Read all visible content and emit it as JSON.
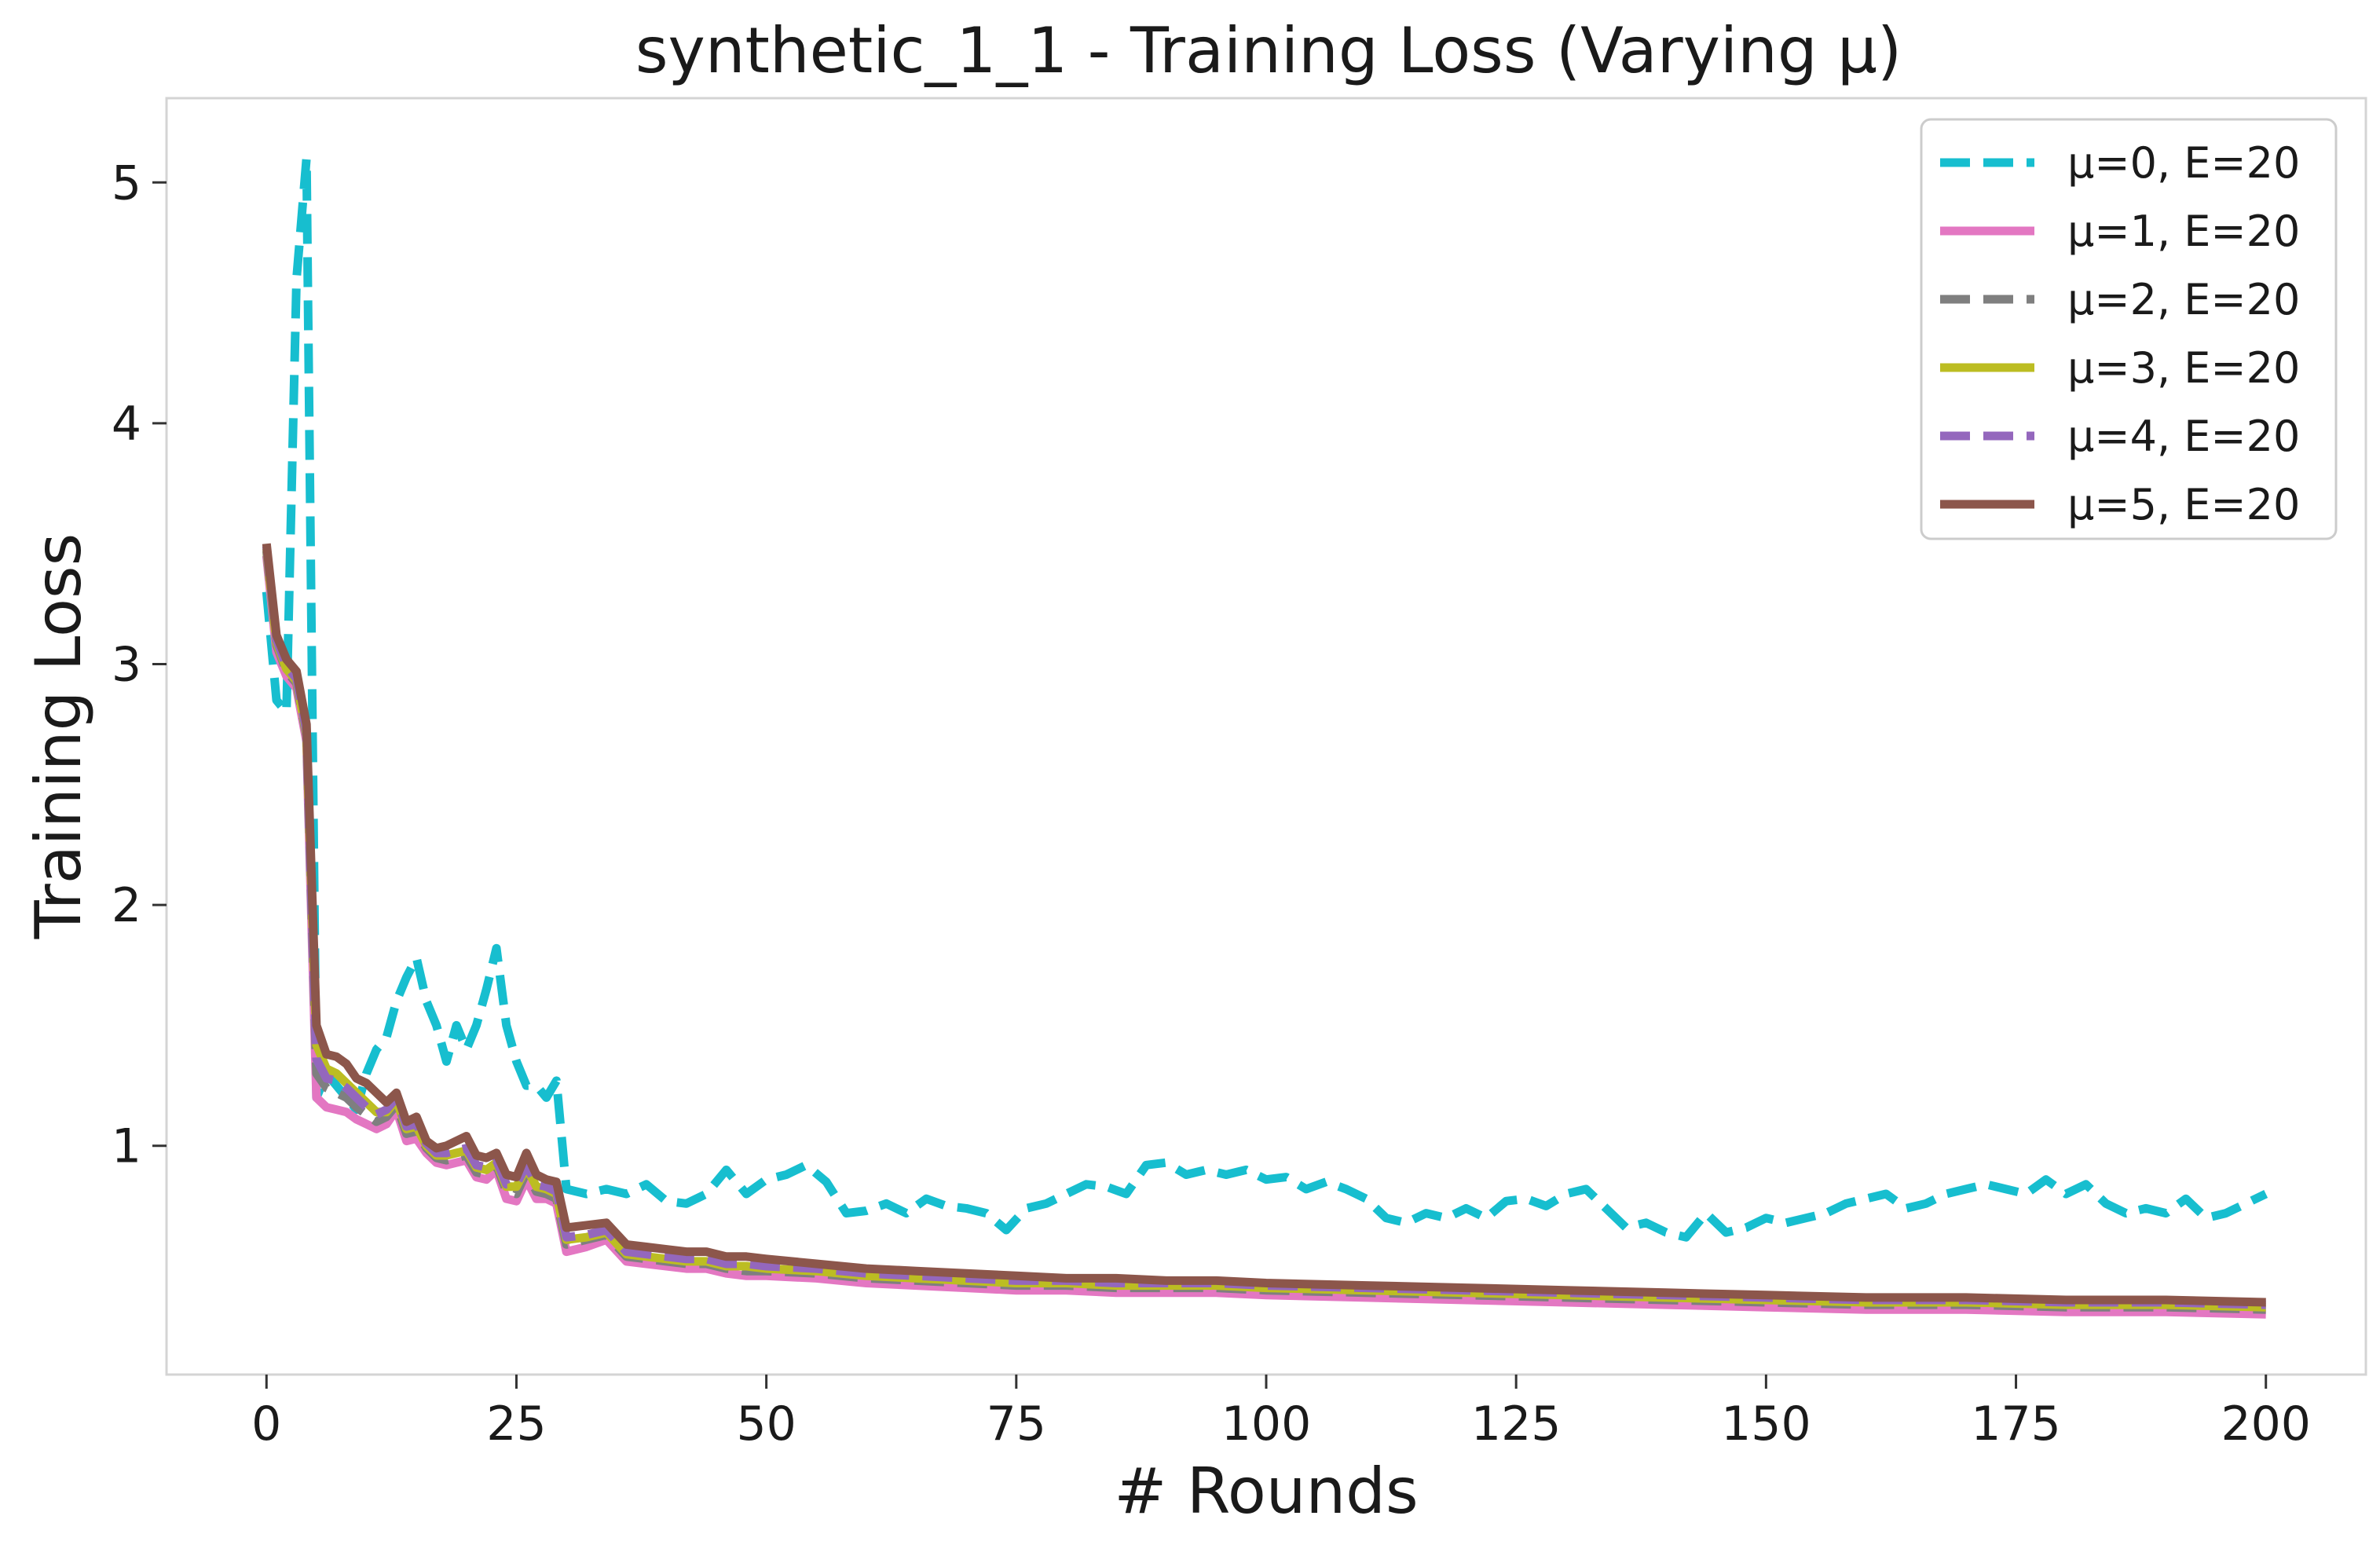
{
  "chart_data": {
    "type": "line",
    "title": "synthetic_1_1 - Training Loss (Varying μ)",
    "xlabel": "# Rounds",
    "ylabel": "Training Loss",
    "xlim": [
      -10,
      210
    ],
    "ylim": [
      0.05,
      5.35
    ],
    "xticks": [
      0,
      25,
      50,
      75,
      100,
      125,
      150,
      175,
      200
    ],
    "yticks": [
      1,
      2,
      3,
      4,
      5
    ],
    "grid": false,
    "legend_position": "top-right",
    "series": [
      {
        "name": "μ=0, E=20",
        "color": "#17becf",
        "dash": "dashed",
        "x": [
          0,
          1,
          2,
          3,
          4,
          5,
          6,
          7,
          8,
          9,
          10,
          11,
          12,
          13,
          14,
          15,
          16,
          17,
          18,
          19,
          20,
          21,
          22,
          23,
          24,
          25,
          26,
          27,
          28,
          29,
          30,
          32,
          34,
          36,
          38,
          40,
          42,
          44,
          46,
          48,
          50,
          52,
          54,
          56,
          58,
          60,
          62,
          64,
          66,
          68,
          70,
          72,
          74,
          76,
          78,
          80,
          82,
          84,
          86,
          88,
          90,
          92,
          94,
          96,
          98,
          100,
          102,
          104,
          106,
          108,
          110,
          112,
          114,
          116,
          118,
          120,
          122,
          124,
          126,
          128,
          130,
          132,
          134,
          136,
          138,
          140,
          142,
          144,
          146,
          148,
          150,
          152,
          154,
          156,
          158,
          160,
          162,
          164,
          166,
          168,
          170,
          172,
          174,
          176,
          178,
          180,
          182,
          184,
          186,
          188,
          190,
          192,
          194,
          196,
          198,
          200
        ],
        "values": [
          3.3,
          2.85,
          2.8,
          4.6,
          5.1,
          1.2,
          1.3,
          1.25,
          1.2,
          1.15,
          1.3,
          1.4,
          1.45,
          1.6,
          1.7,
          1.78,
          1.6,
          1.5,
          1.35,
          1.5,
          1.4,
          1.5,
          1.65,
          1.82,
          1.5,
          1.35,
          1.25,
          1.25,
          1.2,
          1.27,
          0.82,
          0.8,
          0.82,
          0.8,
          0.84,
          0.77,
          0.76,
          0.8,
          0.9,
          0.8,
          0.86,
          0.88,
          0.92,
          0.85,
          0.72,
          0.73,
          0.76,
          0.72,
          0.78,
          0.75,
          0.74,
          0.72,
          0.65,
          0.74,
          0.76,
          0.8,
          0.84,
          0.83,
          0.8,
          0.92,
          0.93,
          0.88,
          0.9,
          0.88,
          0.9,
          0.86,
          0.87,
          0.82,
          0.85,
          0.82,
          0.78,
          0.7,
          0.68,
          0.72,
          0.7,
          0.74,
          0.7,
          0.77,
          0.78,
          0.75,
          0.8,
          0.82,
          0.74,
          0.66,
          0.68,
          0.64,
          0.62,
          0.72,
          0.64,
          0.66,
          0.7,
          0.68,
          0.7,
          0.72,
          0.76,
          0.78,
          0.8,
          0.74,
          0.76,
          0.8,
          0.82,
          0.84,
          0.82,
          0.8,
          0.86,
          0.8,
          0.84,
          0.76,
          0.72,
          0.74,
          0.72,
          0.78,
          0.7,
          0.72,
          0.76,
          0.8
        ]
      },
      {
        "name": "μ=1, E=20",
        "color": "#e377c2",
        "dash": "solid",
        "x": [
          0,
          1,
          2,
          3,
          4,
          5,
          6,
          7,
          8,
          9,
          10,
          11,
          12,
          13,
          14,
          15,
          16,
          17,
          18,
          19,
          20,
          21,
          22,
          23,
          24,
          25,
          26,
          27,
          28,
          29,
          30,
          32,
          34,
          36,
          38,
          40,
          42,
          44,
          46,
          48,
          50,
          55,
          60,
          65,
          70,
          75,
          80,
          85,
          90,
          95,
          100,
          110,
          120,
          130,
          140,
          150,
          160,
          170,
          180,
          190,
          200
        ],
        "values": [
          3.45,
          3.05,
          2.95,
          2.9,
          2.68,
          1.2,
          1.16,
          1.15,
          1.14,
          1.11,
          1.09,
          1.07,
          1.09,
          1.15,
          1.02,
          1.03,
          0.97,
          0.93,
          0.92,
          0.93,
          0.94,
          0.87,
          0.86,
          0.9,
          0.78,
          0.77,
          0.86,
          0.78,
          0.78,
          0.76,
          0.56,
          0.58,
          0.61,
          0.52,
          0.51,
          0.5,
          0.49,
          0.49,
          0.47,
          0.46,
          0.46,
          0.45,
          0.43,
          0.42,
          0.41,
          0.4,
          0.4,
          0.39,
          0.39,
          0.39,
          0.38,
          0.37,
          0.36,
          0.35,
          0.34,
          0.33,
          0.32,
          0.32,
          0.31,
          0.31,
          0.3
        ]
      },
      {
        "name": "μ=2, E=20",
        "color": "#7f7f7f",
        "dash": "dashed",
        "x": [
          0,
          1,
          2,
          3,
          4,
          5,
          6,
          7,
          8,
          9,
          10,
          11,
          12,
          13,
          14,
          15,
          16,
          17,
          18,
          19,
          20,
          21,
          22,
          23,
          24,
          25,
          26,
          27,
          28,
          29,
          30,
          32,
          34,
          36,
          38,
          40,
          42,
          44,
          46,
          48,
          50,
          55,
          60,
          65,
          70,
          75,
          80,
          85,
          90,
          95,
          100,
          110,
          120,
          130,
          140,
          150,
          160,
          170,
          180,
          190,
          200
        ],
        "values": [
          3.47,
          3.08,
          2.97,
          2.92,
          2.7,
          1.3,
          1.24,
          1.22,
          1.2,
          1.16,
          1.13,
          1.1,
          1.12,
          1.17,
          1.05,
          1.06,
          0.99,
          0.95,
          0.94,
          0.95,
          0.96,
          0.89,
          0.88,
          0.92,
          0.81,
          0.8,
          0.89,
          0.81,
          0.8,
          0.78,
          0.59,
          0.61,
          0.63,
          0.54,
          0.53,
          0.52,
          0.51,
          0.51,
          0.49,
          0.48,
          0.48,
          0.47,
          0.45,
          0.44,
          0.43,
          0.42,
          0.42,
          0.41,
          0.41,
          0.41,
          0.4,
          0.39,
          0.38,
          0.37,
          0.36,
          0.35,
          0.34,
          0.34,
          0.33,
          0.33,
          0.32
        ]
      },
      {
        "name": "μ=3, E=20",
        "color": "#bcbd22",
        "dash": "solid",
        "x": [
          0,
          1,
          2,
          3,
          4,
          5,
          6,
          7,
          8,
          9,
          10,
          11,
          12,
          13,
          14,
          15,
          16,
          17,
          18,
          19,
          20,
          21,
          22,
          23,
          24,
          25,
          26,
          27,
          28,
          29,
          30,
          32,
          34,
          36,
          38,
          40,
          42,
          44,
          46,
          48,
          50,
          55,
          60,
          65,
          70,
          75,
          80,
          85,
          90,
          95,
          100,
          110,
          120,
          130,
          140,
          150,
          160,
          170,
          180,
          190,
          200
        ],
        "values": [
          3.48,
          3.09,
          2.98,
          2.93,
          2.71,
          1.42,
          1.32,
          1.3,
          1.26,
          1.22,
          1.18,
          1.14,
          1.14,
          1.19,
          1.07,
          1.08,
          1.0,
          0.96,
          0.96,
          0.97,
          0.98,
          0.91,
          0.9,
          0.93,
          0.83,
          0.83,
          0.91,
          0.83,
          0.82,
          0.8,
          0.61,
          0.62,
          0.64,
          0.55,
          0.54,
          0.53,
          0.52,
          0.52,
          0.5,
          0.5,
          0.49,
          0.48,
          0.46,
          0.45,
          0.44,
          0.43,
          0.43,
          0.42,
          0.42,
          0.42,
          0.41,
          0.4,
          0.39,
          0.38,
          0.37,
          0.36,
          0.35,
          0.35,
          0.34,
          0.34,
          0.33
        ]
      },
      {
        "name": "μ=4, E=20",
        "color": "#9467bd",
        "dash": "dashed",
        "x": [
          0,
          1,
          2,
          3,
          4,
          5,
          6,
          7,
          8,
          9,
          10,
          11,
          12,
          13,
          14,
          15,
          16,
          17,
          18,
          19,
          20,
          21,
          22,
          23,
          24,
          25,
          26,
          27,
          28,
          29,
          30,
          32,
          34,
          36,
          38,
          40,
          42,
          44,
          46,
          48,
          50,
          55,
          60,
          65,
          70,
          75,
          80,
          85,
          90,
          95,
          100,
          110,
          120,
          130,
          140,
          150,
          160,
          170,
          180,
          190,
          200
        ],
        "values": [
          3.49,
          3.1,
          2.99,
          2.94,
          2.72,
          1.36,
          1.28,
          1.27,
          1.24,
          1.2,
          1.16,
          1.13,
          1.15,
          1.2,
          1.08,
          1.09,
          1.01,
          0.97,
          0.97,
          0.98,
          0.99,
          0.92,
          0.91,
          0.94,
          0.84,
          0.84,
          0.92,
          0.84,
          0.83,
          0.81,
          0.62,
          0.63,
          0.65,
          0.56,
          0.55,
          0.54,
          0.53,
          0.53,
          0.51,
          0.51,
          0.5,
          0.49,
          0.47,
          0.46,
          0.45,
          0.44,
          0.44,
          0.43,
          0.43,
          0.43,
          0.42,
          0.41,
          0.4,
          0.39,
          0.38,
          0.37,
          0.36,
          0.36,
          0.35,
          0.35,
          0.34
        ]
      },
      {
        "name": "μ=5, E=20",
        "color": "#8c564b",
        "dash": "solid",
        "x": [
          0,
          1,
          2,
          3,
          4,
          5,
          6,
          7,
          8,
          9,
          10,
          11,
          12,
          13,
          14,
          15,
          16,
          17,
          18,
          19,
          20,
          21,
          22,
          23,
          24,
          25,
          26,
          27,
          28,
          29,
          30,
          32,
          34,
          36,
          38,
          40,
          42,
          44,
          46,
          48,
          50,
          55,
          60,
          65,
          70,
          75,
          80,
          85,
          90,
          95,
          100,
          110,
          120,
          130,
          140,
          150,
          160,
          170,
          180,
          190,
          200
        ],
        "values": [
          3.5,
          3.12,
          3.02,
          2.97,
          2.75,
          1.5,
          1.38,
          1.37,
          1.34,
          1.28,
          1.26,
          1.22,
          1.18,
          1.22,
          1.1,
          1.12,
          1.02,
          0.99,
          1.0,
          1.02,
          1.04,
          0.96,
          0.95,
          0.97,
          0.88,
          0.87,
          0.97,
          0.88,
          0.86,
          0.85,
          0.66,
          0.67,
          0.68,
          0.59,
          0.58,
          0.57,
          0.56,
          0.56,
          0.54,
          0.54,
          0.53,
          0.51,
          0.49,
          0.48,
          0.47,
          0.46,
          0.45,
          0.45,
          0.44,
          0.44,
          0.43,
          0.42,
          0.41,
          0.4,
          0.39,
          0.38,
          0.37,
          0.37,
          0.36,
          0.36,
          0.35
        ]
      }
    ]
  }
}
